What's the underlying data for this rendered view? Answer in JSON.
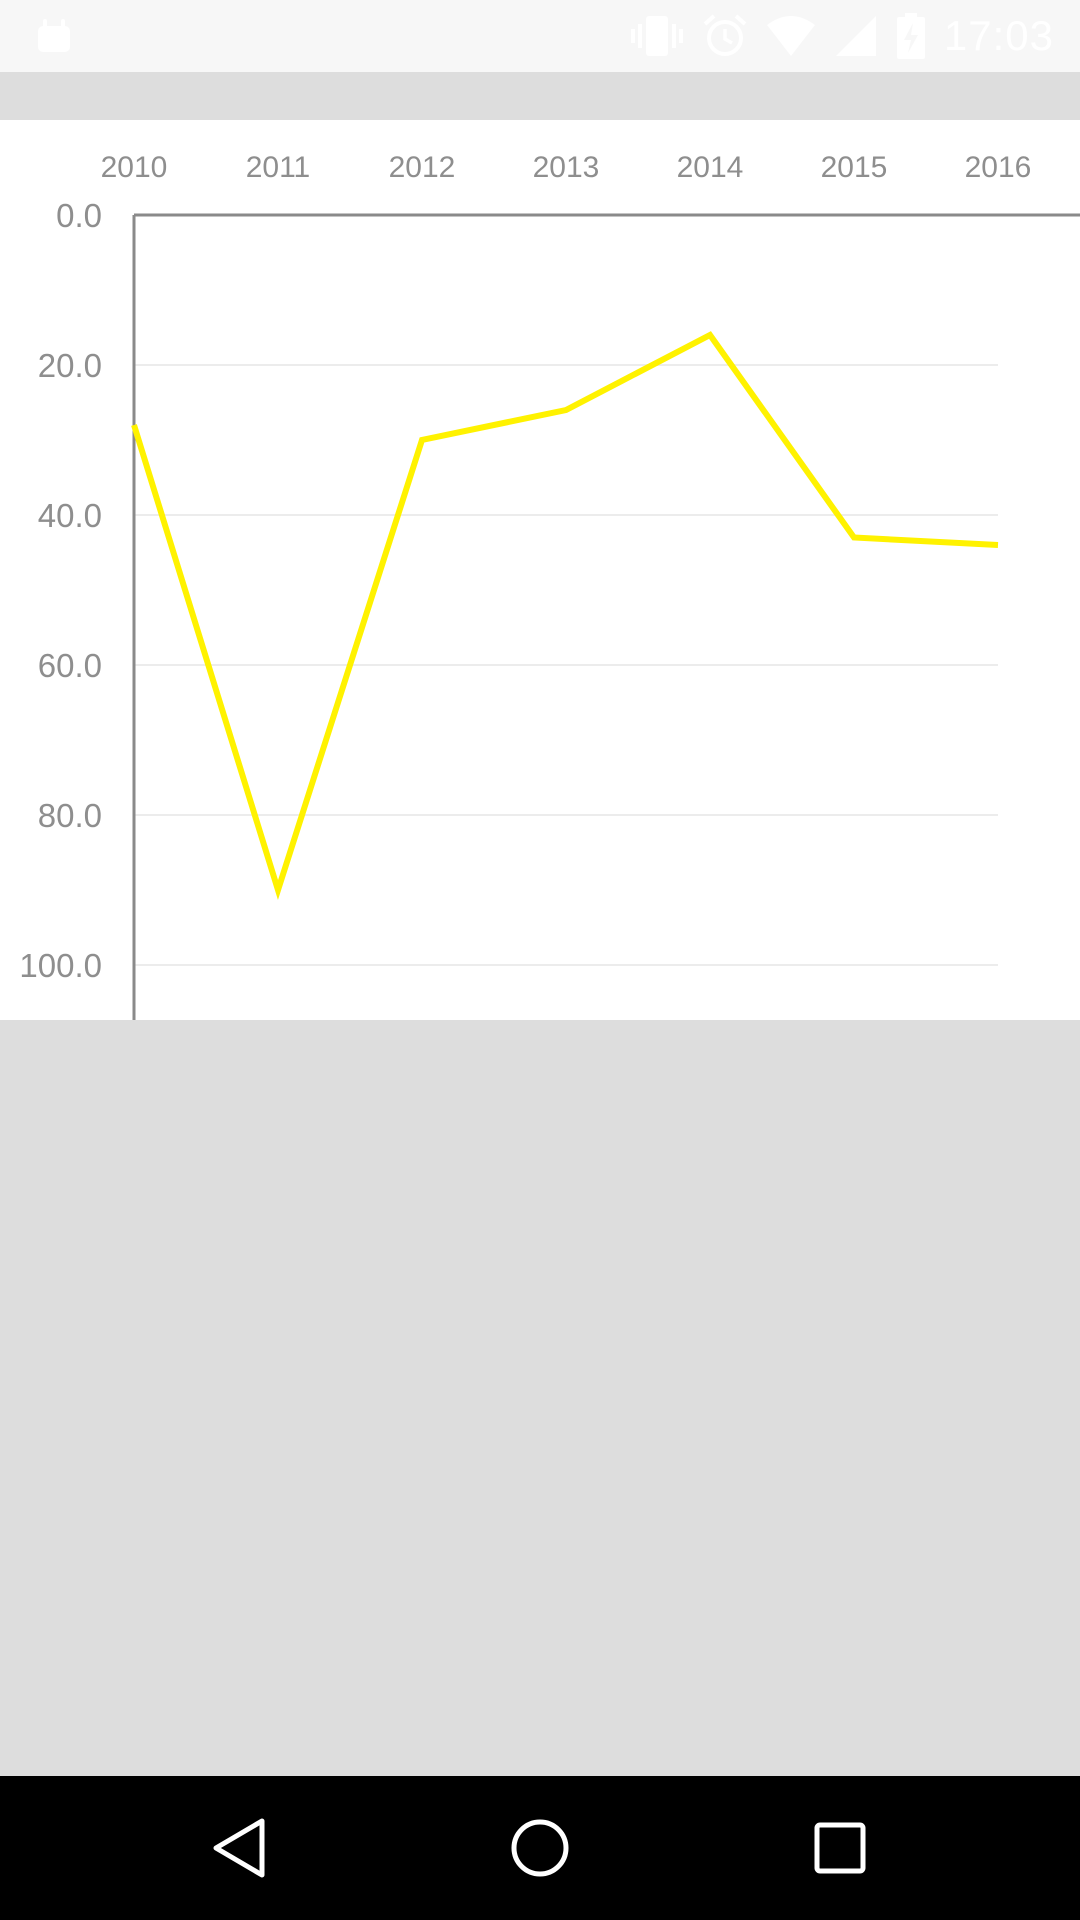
{
  "status_bar": {
    "time": "17:03",
    "icons": [
      "android-notification-icon",
      "vibrate-icon",
      "alarm-icon",
      "wifi-icon",
      "cell-signal-icon",
      "battery-charging-icon"
    ]
  },
  "nav_bar": {
    "icons": [
      "back-icon",
      "home-icon",
      "recents-icon"
    ]
  },
  "colors": {
    "line": "#fff200",
    "grid": "#ececec",
    "axis": "#8a8a8a",
    "background": "#dddddd",
    "panel": "#ffffff"
  },
  "chart_data": {
    "type": "line",
    "x": [
      "2010",
      "2011",
      "2012",
      "2013",
      "2014",
      "2015",
      "2016"
    ],
    "series": [
      {
        "values": [
          28,
          90,
          30,
          26,
          16,
          43,
          44
        ]
      }
    ],
    "y_ticks": [
      "0.0",
      "20.0",
      "40.0",
      "60.0",
      "80.0",
      "100.0"
    ],
    "ylim": [
      0,
      100
    ],
    "y_inverted": true,
    "x_axis_position": "top",
    "grid": true
  }
}
